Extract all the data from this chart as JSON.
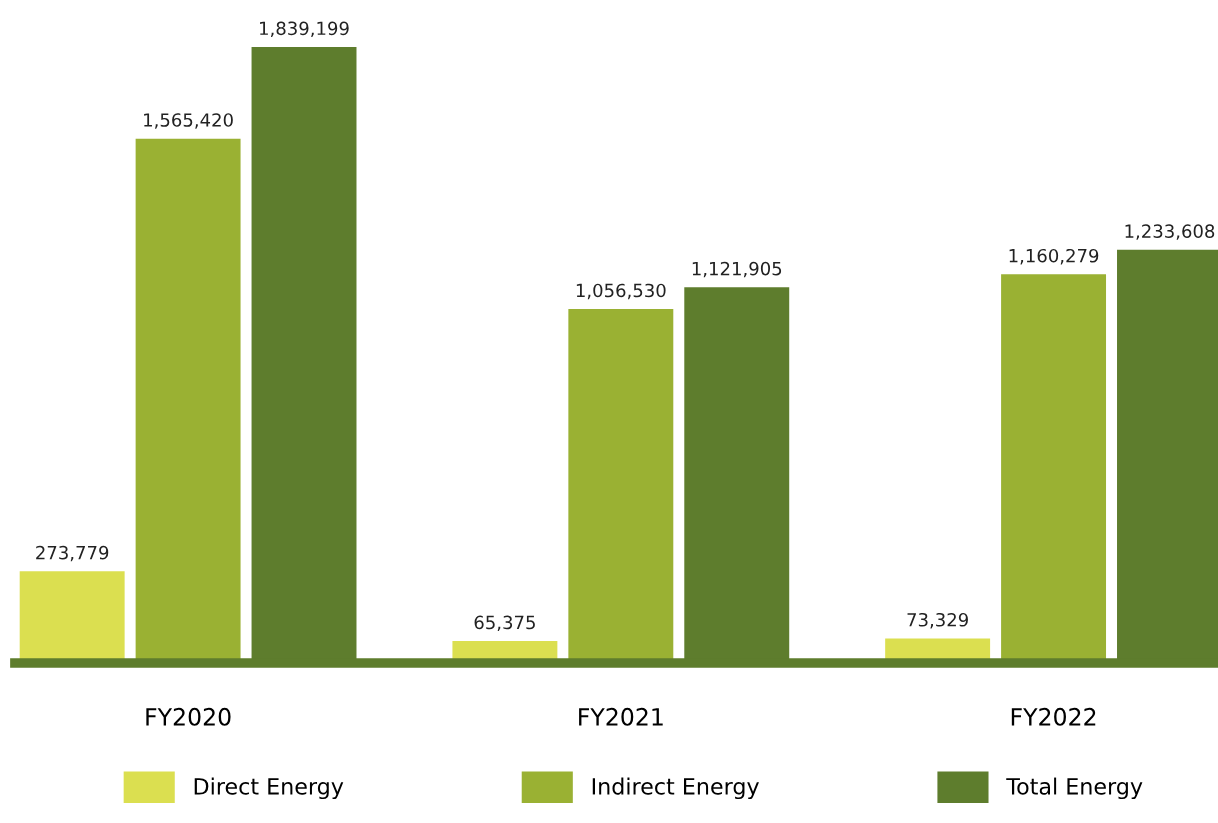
{
  "chart_data": {
    "type": "bar",
    "categories": [
      "FY2020",
      "FY2021",
      "FY2022"
    ],
    "series": [
      {
        "name": "Direct Energy",
        "color": "#dbdf50",
        "values": [
          273779,
          65375,
          73329
        ],
        "value_labels": [
          "273,779",
          "65,375",
          "73,329"
        ]
      },
      {
        "name": "Indirect Energy",
        "color": "#9ab133",
        "values": [
          1565420,
          1056530,
          1160279
        ],
        "value_labels": [
          "1,565,420",
          "1,056,530",
          "1,160,279"
        ]
      },
      {
        "name": "Total Energy",
        "color": "#5e7d2d",
        "values": [
          1839199,
          1121905,
          1233608
        ],
        "value_labels": [
          "1,839,199",
          "1,121,905",
          "1,233,608"
        ]
      }
    ],
    "legend": "bottom"
  }
}
